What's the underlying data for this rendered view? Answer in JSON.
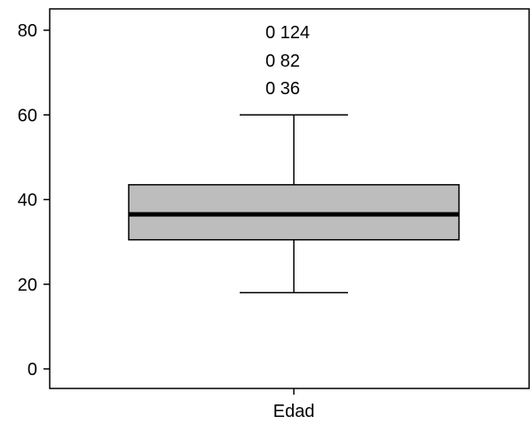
{
  "chart_data": {
    "type": "boxplot",
    "xlabel": "",
    "ylabel": "",
    "ylim": [
      0,
      80
    ],
    "y_ticks": [
      0,
      20,
      40,
      60,
      80
    ],
    "grid": false,
    "categories": [
      "Edad"
    ],
    "box": {
      "q1": 30.5,
      "median": 36.5,
      "q3": 43.5,
      "whisker_low": 18,
      "whisker_high": 60,
      "fill": "#bdbdbd"
    },
    "outlier_labels": [
      "0 124",
      "0 82",
      "0 36"
    ]
  }
}
